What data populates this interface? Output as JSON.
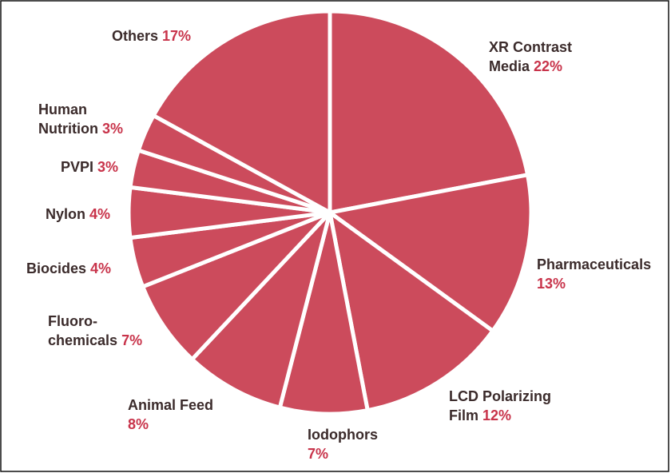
{
  "chart_data": {
    "type": "pie",
    "categories": [
      "XR Contrast\nMedia",
      "Pharmaceuticals",
      "LCD Polarizing\nFilm",
      "Iodophors",
      "Animal Feed",
      "Fluoro-\nchemicals",
      "Biocides",
      "Nylon",
      "PVPI",
      "Human\nNutrition",
      "Others"
    ],
    "values": [
      22,
      13,
      12,
      7,
      8,
      7,
      4,
      4,
      3,
      3,
      17
    ],
    "value_labels": [
      "22%",
      "13%",
      "12%",
      "7%",
      "8%",
      "7%",
      "4%",
      "4%",
      "3%",
      "3%",
      "17%"
    ],
    "color": "#cc4b5c",
    "label_color": "#c8334a"
  }
}
